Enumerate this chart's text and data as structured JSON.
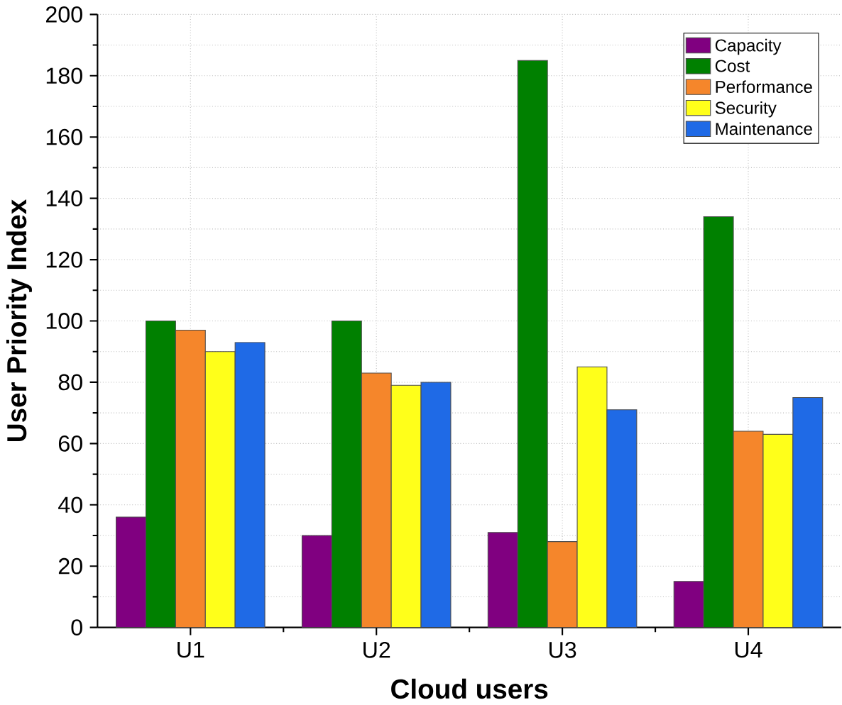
{
  "chart_data": {
    "type": "bar",
    "xlabel": "Cloud users",
    "ylabel": "User Priority Index",
    "categories": [
      "U1",
      "U2",
      "U3",
      "U4"
    ],
    "series": [
      {
        "name": "Capacity",
        "color": "#800080",
        "values": [
          36,
          30,
          31,
          15
        ]
      },
      {
        "name": "Cost",
        "color": "#008000",
        "values": [
          100,
          100,
          185,
          134
        ]
      },
      {
        "name": "Performance",
        "color": "#f5862b",
        "values": [
          97,
          83,
          28,
          64
        ]
      },
      {
        "name": "Security",
        "color": "#ffff1a",
        "values": [
          90,
          79,
          85,
          63
        ]
      },
      {
        "name": "Maintenance",
        "color": "#1f6ae6",
        "values": [
          93,
          80,
          71,
          75
        ]
      }
    ],
    "ylim": [
      0,
      200
    ],
    "yticks": [
      0,
      20,
      40,
      60,
      80,
      100,
      120,
      140,
      160,
      180,
      200
    ],
    "grid": true,
    "legend": "top right"
  }
}
